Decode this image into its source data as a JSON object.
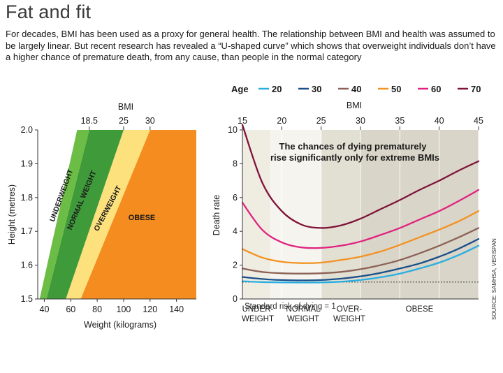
{
  "header": {
    "title": "Fat and fit",
    "intro": "For decades, BMI has been used as a proxy for general health. The relationship between BMI and health was assumed to be largely linear. But recent research has revealed a “U-shaped curve” which shows that overweight individuals don’t have a higher chance of premature death, from any cause, than people in the normal category"
  },
  "legend": {
    "title": "Age",
    "items": [
      {
        "label": "20",
        "color": "#29aee0"
      },
      {
        "label": "30",
        "color": "#1a4f8a"
      },
      {
        "label": "40",
        "color": "#8c6257"
      },
      {
        "label": "50",
        "color": "#f29222"
      },
      {
        "label": "60",
        "color": "#e0237f"
      },
      {
        "label": "70",
        "color": "#7f1239"
      }
    ]
  },
  "source": "SOURCE: SAMHSA, VERISPAN",
  "colors": {
    "underweight": "#6cbd45",
    "normal": "#3f9a3a",
    "overweight": "#fde17d",
    "obese": "#f48c20",
    "annotation_text": "#1a1a1a"
  },
  "chart_data": [
    {
      "type": "area",
      "top_axis_label": "BMI",
      "top_ticks": [
        "18.5",
        "25",
        "30"
      ],
      "bmi_boundaries": [
        18.5,
        25,
        30
      ],
      "xlabel": "Weight (kilograms)",
      "ylabel": "Height (metres)",
      "xlim": [
        35,
        155
      ],
      "ylim": [
        1.5,
        2.0
      ],
      "x_ticks": [
        40,
        60,
        80,
        100,
        120,
        140
      ],
      "y_ticks": [
        "1.5",
        "1.6",
        "1.7",
        "1.8",
        "1.9",
        "2.0"
      ],
      "regions": [
        "UNDERWEIGHT",
        "NORMAL WEIGHT",
        "OVERWEIGHT",
        "OBESE"
      ]
    },
    {
      "type": "line",
      "top_axis_label": "BMI",
      "ylabel": "Death rate",
      "xlim": [
        15,
        45
      ],
      "ylim": [
        0,
        10
      ],
      "x_ticks": [
        15,
        20,
        25,
        30,
        35,
        40,
        45
      ],
      "y_ticks": [
        0,
        2,
        4,
        6,
        8,
        10
      ],
      "annotation": "The chances of dying prematurely rise significantly only for extreme BMIs",
      "baseline": {
        "value": 1,
        "label": "Standard risk of dying = 1"
      },
      "bands": [
        {
          "label": "UNDER-\nWEIGHT",
          "from": 15,
          "to": 18.5
        },
        {
          "label": "NORMAL\nWEIGHT",
          "from": 18.5,
          "to": 25
        },
        {
          "label": "OVER-\nWEIGHT",
          "from": 25,
          "to": 30
        },
        {
          "label": "OBESE",
          "from": 30,
          "to": 45
        }
      ],
      "x": [
        15,
        17.5,
        20,
        22.5,
        25,
        27.5,
        30,
        32.5,
        35,
        37.5,
        40,
        42.5,
        45
      ],
      "series": [
        {
          "name": "20",
          "values": [
            1.05,
            1.0,
            0.98,
            0.97,
            0.98,
            1.02,
            1.12,
            1.28,
            1.5,
            1.8,
            2.15,
            2.6,
            3.15
          ]
        },
        {
          "name": "30",
          "values": [
            1.3,
            1.18,
            1.12,
            1.1,
            1.12,
            1.2,
            1.34,
            1.54,
            1.8,
            2.1,
            2.5,
            2.98,
            3.55
          ]
        },
        {
          "name": "40",
          "values": [
            1.8,
            1.6,
            1.52,
            1.5,
            1.52,
            1.6,
            1.76,
            2.0,
            2.3,
            2.7,
            3.15,
            3.65,
            4.2
          ]
        },
        {
          "name": "50",
          "values": [
            2.95,
            2.45,
            2.2,
            2.12,
            2.15,
            2.3,
            2.5,
            2.8,
            3.2,
            3.65,
            4.1,
            4.6,
            5.2
          ]
        },
        {
          "name": "60",
          "values": [
            5.7,
            4.1,
            3.35,
            3.05,
            3.02,
            3.15,
            3.4,
            3.78,
            4.2,
            4.7,
            5.2,
            5.8,
            6.45
          ]
        },
        {
          "name": "70",
          "values": [
            10.3,
            6.9,
            5.2,
            4.4,
            4.2,
            4.35,
            4.75,
            5.3,
            5.85,
            6.45,
            7.0,
            7.6,
            8.15
          ]
        }
      ]
    }
  ]
}
